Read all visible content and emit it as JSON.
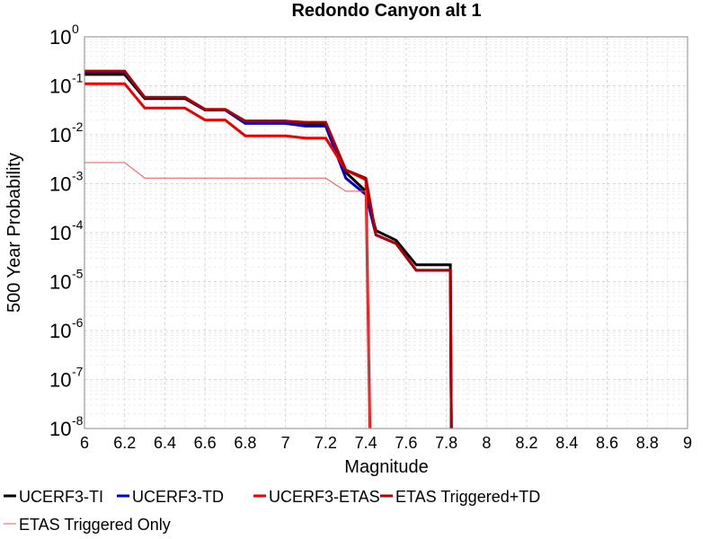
{
  "chart_data": {
    "type": "line",
    "title": "Redondo Canyon alt 1",
    "xlabel": "Magnitude",
    "ylabel": "500 Year Probability",
    "xlim": [
      6,
      9
    ],
    "ylim": [
      1e-08,
      1
    ],
    "yscale": "log",
    "grid": true,
    "legend_position": "bottom",
    "x_ticks": [
      "6",
      "6.2",
      "6.4",
      "6.6",
      "6.8",
      "7",
      "7.2",
      "7.4",
      "7.6",
      "7.8",
      "8",
      "8.2",
      "8.4",
      "8.6",
      "8.8",
      "9"
    ],
    "y_ticks": [
      {
        "base": "10",
        "exp": "0",
        "value": 1
      },
      {
        "base": "10",
        "exp": "-1",
        "value": 0.1
      },
      {
        "base": "10",
        "exp": "-2",
        "value": 0.01
      },
      {
        "base": "10",
        "exp": "-3",
        "value": 0.001
      },
      {
        "base": "10",
        "exp": "-4",
        "value": 0.0001
      },
      {
        "base": "10",
        "exp": "-5",
        "value": 1e-05
      },
      {
        "base": "10",
        "exp": "-6",
        "value": 1e-06
      },
      {
        "base": "10",
        "exp": "-7",
        "value": 1e-07
      },
      {
        "base": "10",
        "exp": "-8",
        "value": 1e-08
      }
    ],
    "series": [
      {
        "name": "UCERF3-TI",
        "color": "#000000",
        "width": 3,
        "x": [
          6.0,
          6.2,
          6.3,
          6.5,
          6.6,
          6.7,
          6.8,
          6.9,
          7.0,
          7.1,
          7.2,
          7.3,
          7.4,
          7.45,
          7.55,
          7.65,
          7.75,
          7.82,
          7.825
        ],
        "y": [
          0.17,
          0.17,
          0.055,
          0.055,
          0.032,
          0.032,
          0.019,
          0.019,
          0.019,
          0.017,
          0.017,
          0.0017,
          0.0007,
          0.00011,
          7e-05,
          2.2e-05,
          2.2e-05,
          2.2e-05,
          1e-08
        ]
      },
      {
        "name": "UCERF3-TD",
        "color": "#0000cc",
        "width": 3,
        "x": [
          6.0,
          6.2,
          6.3,
          6.5,
          6.6,
          6.7,
          6.8,
          6.9,
          7.0,
          7.1,
          7.2,
          7.3,
          7.4,
          7.45,
          7.55,
          7.65,
          7.75,
          7.82,
          7.825
        ],
        "y": [
          0.19,
          0.19,
          0.058,
          0.058,
          0.032,
          0.032,
          0.017,
          0.017,
          0.017,
          0.015,
          0.015,
          0.0013,
          0.0006,
          9e-05,
          6e-05,
          1.7e-05,
          1.7e-05,
          1.7e-05,
          1e-08
        ]
      },
      {
        "name": "UCERF3-ETAS",
        "color": "#ee0000",
        "width": 3,
        "x": [
          6.0,
          6.2,
          6.3,
          6.5,
          6.6,
          6.7,
          6.8,
          6.9,
          7.0,
          7.1,
          7.2,
          7.3,
          7.4,
          7.42
        ],
        "y": [
          0.11,
          0.11,
          0.035,
          0.035,
          0.02,
          0.02,
          0.0095,
          0.0095,
          0.0095,
          0.0085,
          0.0085,
          0.0019,
          0.0012,
          1e-08
        ]
      },
      {
        "name": "ETAS Triggered+TD",
        "color": "#b00000",
        "width": 3,
        "x": [
          6.0,
          6.2,
          6.3,
          6.5,
          6.6,
          6.7,
          6.8,
          6.9,
          7.0,
          7.1,
          7.2,
          7.3,
          7.4,
          7.45,
          7.55,
          7.65,
          7.75,
          7.82,
          7.825
        ],
        "y": [
          0.2,
          0.2,
          0.058,
          0.058,
          0.033,
          0.033,
          0.019,
          0.019,
          0.019,
          0.018,
          0.018,
          0.0019,
          0.0013,
          9e-05,
          6e-05,
          1.7e-05,
          1.7e-05,
          1.7e-05,
          1e-08
        ]
      },
      {
        "name": "ETAS Triggered Only",
        "color": "#ee5555",
        "width": 1,
        "x": [
          6.0,
          6.2,
          6.3,
          6.5,
          6.6,
          6.7,
          6.8,
          6.9,
          7.0,
          7.1,
          7.2,
          7.3,
          7.4,
          7.42
        ],
        "y": [
          0.0027,
          0.0027,
          0.0013,
          0.0013,
          0.0013,
          0.0013,
          0.0013,
          0.0013,
          0.0013,
          0.0013,
          0.0013,
          0.0007,
          0.0007,
          1e-08
        ]
      }
    ]
  }
}
